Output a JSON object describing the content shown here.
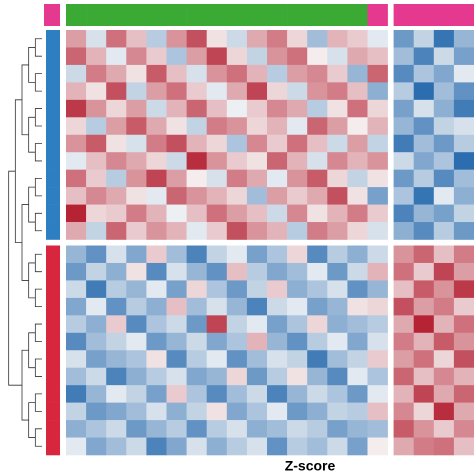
{
  "chart_data": {
    "type": "heatmap",
    "legend_title": "Z-score",
    "zlim": [
      -2,
      2
    ],
    "colormap": [
      "#2166ac",
      "#f7f7f7",
      "#b2182b"
    ],
    "column_annotation": [
      "#3aaa35",
      "#3aaa35",
      "#3aaa35",
      "#3aaa35",
      "#3aaa35",
      "#3aaa35",
      "#3aaa35",
      "#3aaa35",
      "#3aaa35",
      "#3aaa35",
      "#3aaa35",
      "#3aaa35",
      "#3aaa35",
      "#3aaa35",
      "#3aaa35",
      "#e5388f",
      "#e5388f",
      "#e5388f",
      "#e5388f",
      "#e5388f"
    ],
    "row_annotation": [
      "#2e7fc1",
      "#2e7fc1",
      "#2e7fc1",
      "#2e7fc1",
      "#2e7fc1",
      "#2e7fc1",
      "#2e7fc1",
      "#2e7fc1",
      "#2e7fc1",
      "#2e7fc1",
      "#2e7fc1",
      "#2e7fc1",
      "#d7263d",
      "#d7263d",
      "#d7263d",
      "#d7263d",
      "#d7263d",
      "#d7263d",
      "#d7263d",
      "#d7263d",
      "#d7263d",
      "#d7263d",
      "#d7263d",
      "#d7263d"
    ],
    "values": [
      [
        0.8,
        -0.3,
        1.2,
        0.5,
        -0.6,
        0.9,
        1.5,
        0.2,
        -0.4,
        0.7,
        1.1,
        0.3,
        -0.8,
        0.6,
        0.4,
        -0.2,
        -1.3,
        -0.5,
        -1.8,
        -0.9
      ],
      [
        1.3,
        0.6,
        -0.2,
        1.0,
        0.4,
        -0.7,
        0.8,
        1.6,
        0.3,
        -0.5,
        0.9,
        1.2,
        0.1,
        -0.3,
        0.7,
        0.5,
        -0.8,
        -1.6,
        -0.4,
        -1.2
      ],
      [
        -0.4,
        1.1,
        0.7,
        0.2,
        1.4,
        0.5,
        -0.3,
        0.9,
        1.2,
        0.6,
        -0.6,
        0.8,
        1.0,
        0.4,
        -0.9,
        1.3,
        -1.5,
        -0.7,
        -1.1,
        -0.2
      ],
      [
        0.6,
        0.2,
        1.5,
        -0.5,
        0.8,
        1.2,
        0.4,
        -0.2,
        0.7,
        1.6,
        0.3,
        -0.4,
        0.9,
        1.1,
        0.5,
        -1.0,
        -0.6,
        -1.9,
        -0.8,
        -1.4
      ],
      [
        1.7,
        0.9,
        0.3,
        0.8,
        -0.4,
        0.6,
        1.3,
        0.5,
        -0.1,
        0.4,
        1.0,
        0.7,
        -0.6,
        0.2,
        1.2,
        0.3,
        -1.2,
        -0.3,
        -1.0,
        -1.7
      ],
      [
        0.3,
        -0.6,
        0.8,
        1.4,
        0.7,
        0.2,
        -0.5,
        1.1,
        0.9,
        0.3,
        0.6,
        -0.2,
        1.3,
        0.8,
        0.1,
        0.6,
        -0.9,
        -1.4,
        -0.5,
        -0.3
      ],
      [
        0.9,
        1.4,
        0.2,
        -0.3,
        1.1,
        1.5,
        0.6,
        0.3,
        -0.7,
        1.0,
        0.4,
        1.2,
        0.5,
        -0.4,
        0.8,
        -0.5,
        -1.7,
        -0.8,
        -1.3,
        -0.6
      ],
      [
        -0.2,
        0.5,
        1.0,
        0.7,
        0.3,
        -0.4,
        1.8,
        0.9,
        0.4,
        0.2,
        1.3,
        0.6,
        -0.3,
        1.0,
        0.6,
        0.9,
        -0.4,
        -1.1,
        -0.7,
        -1.9
      ],
      [
        1.2,
        0.4,
        -0.6,
        0.9,
        1.6,
        0.8,
        0.1,
        -0.3,
        1.1,
        0.7,
        -0.2,
        0.9,
        1.4,
        0.3,
        -0.5,
        0.2,
        -1.3,
        -0.6,
        -1.5,
        -0.8
      ],
      [
        0.5,
        1.0,
        0.7,
        0.2,
        -0.2,
        1.3,
        0.9,
        0.6,
        0.3,
        -0.8,
        0.8,
        0.4,
        0.7,
        1.5,
        0.2,
        -1.2,
        -0.7,
        -1.8,
        -0.2,
        -1.0
      ],
      [
        1.9,
        0.3,
        0.4,
        1.1,
        0.6,
        -0.1,
        0.5,
        1.2,
        0.8,
        0.5,
        -0.4,
        1.0,
        0.2,
        0.6,
        1.1,
        0.4,
        -1.6,
        -0.9,
        -1.2,
        -0.5
      ],
      [
        0.7,
        -0.5,
        1.3,
        0.4,
        0.9,
        0.6,
        -0.2,
        0.4,
        1.5,
        0.9,
        0.6,
        -0.6,
        1.1,
        0.8,
        0.3,
        -0.3,
        -1.0,
        -1.5,
        -0.6,
        -1.3
      ],
      [
        -0.9,
        -1.4,
        -0.3,
        -1.1,
        0.4,
        -0.8,
        -1.6,
        -0.5,
        -0.2,
        -1.2,
        -0.7,
        0.3,
        -1.5,
        -0.6,
        -1.0,
        -0.4,
        0.9,
        1.3,
        0.5,
        1.1
      ],
      [
        -1.3,
        -0.5,
        -1.0,
        0.2,
        -1.5,
        -0.3,
        -0.9,
        -1.4,
        0.5,
        -0.6,
        -1.1,
        -0.8,
        -0.2,
        -1.3,
        -0.4,
        0.6,
        1.2,
        0.4,
        1.6,
        0.8
      ],
      [
        -0.4,
        -1.7,
        -0.6,
        -0.9,
        -0.2,
        -1.2,
        0.3,
        -0.7,
        -1.3,
        -0.5,
        0.4,
        -1.0,
        -0.7,
        -0.3,
        -1.4,
        -0.9,
        0.5,
        1.4,
        0.9,
        1.7
      ],
      [
        -1.1,
        -0.2,
        -1.4,
        -0.6,
        -1.0,
        0.5,
        -0.8,
        -0.3,
        -0.9,
        -1.6,
        -0.4,
        -0.2,
        -1.2,
        -0.9,
        0.2,
        0.3,
        1.5,
        0.8,
        1.1,
        0.4
      ],
      [
        -0.6,
        -1.0,
        0.4,
        -1.5,
        -0.7,
        -0.4,
        -1.3,
        1.6,
        -0.5,
        -0.2,
        -1.2,
        -0.7,
        0.3,
        -1.0,
        -0.8,
        -0.6,
        0.7,
        1.9,
        0.6,
        1.2
      ],
      [
        -1.5,
        -0.8,
        -0.5,
        -0.2,
        -1.3,
        -0.9,
        -0.4,
        -1.1,
        -0.7,
        0.6,
        -0.9,
        -1.4,
        -0.6,
        -0.2,
        -1.1,
        -0.3,
        1.1,
        0.6,
        1.4,
        0.9
      ],
      [
        -0.3,
        -1.2,
        -0.9,
        -0.7,
        0.2,
        -1.5,
        -0.6,
        -0.2,
        -1.4,
        -0.8,
        -0.3,
        -0.5,
        -1.7,
        -0.8,
        -0.5,
        0.4,
        0.8,
        1.2,
        0.3,
        1.5
      ],
      [
        -0.8,
        -0.4,
        -1.6,
        -1.0,
        -0.6,
        -0.3,
        -1.1,
        -0.9,
        0.3,
        -1.3,
        -0.6,
        0.2,
        -0.9,
        -1.5,
        -0.2,
        -0.7,
        1.3,
        0.5,
        1.0,
        0.6
      ],
      [
        -1.7,
        -0.9,
        -0.2,
        -0.5,
        -1.2,
        0.4,
        -0.7,
        -1.5,
        -0.8,
        -0.4,
        -1.6,
        -0.9,
        -0.4,
        -0.7,
        -1.3,
        -0.2,
        0.6,
        1.6,
        0.7,
        1.3
      ],
      [
        -0.5,
        -1.3,
        -1.1,
        -0.8,
        -0.3,
        -1.0,
        -0.5,
        0.2,
        -1.1,
        -0.7,
        -0.2,
        -1.3,
        -1.0,
        -0.5,
        -0.6,
        0.5,
        1.0,
        0.3,
        1.8,
        0.7
      ],
      [
        -1.0,
        -0.7,
        -0.4,
        -1.3,
        -0.9,
        -0.6,
        -1.4,
        -0.6,
        -0.3,
        -1.0,
        -0.8,
        -0.4,
        -0.6,
        -1.2,
        -0.9,
        -0.8,
        1.4,
        0.9,
        0.4,
        1.0
      ],
      [
        -0.2,
        -1.1,
        -0.8,
        -0.4,
        -1.6,
        -1.1,
        -0.3,
        -1.0,
        -0.6,
        -0.3,
        -1.4,
        -0.6,
        -0.8,
        -0.4,
        -1.2,
        0.1,
        0.7,
        1.1,
        1.2,
        0.5
      ]
    ]
  }
}
